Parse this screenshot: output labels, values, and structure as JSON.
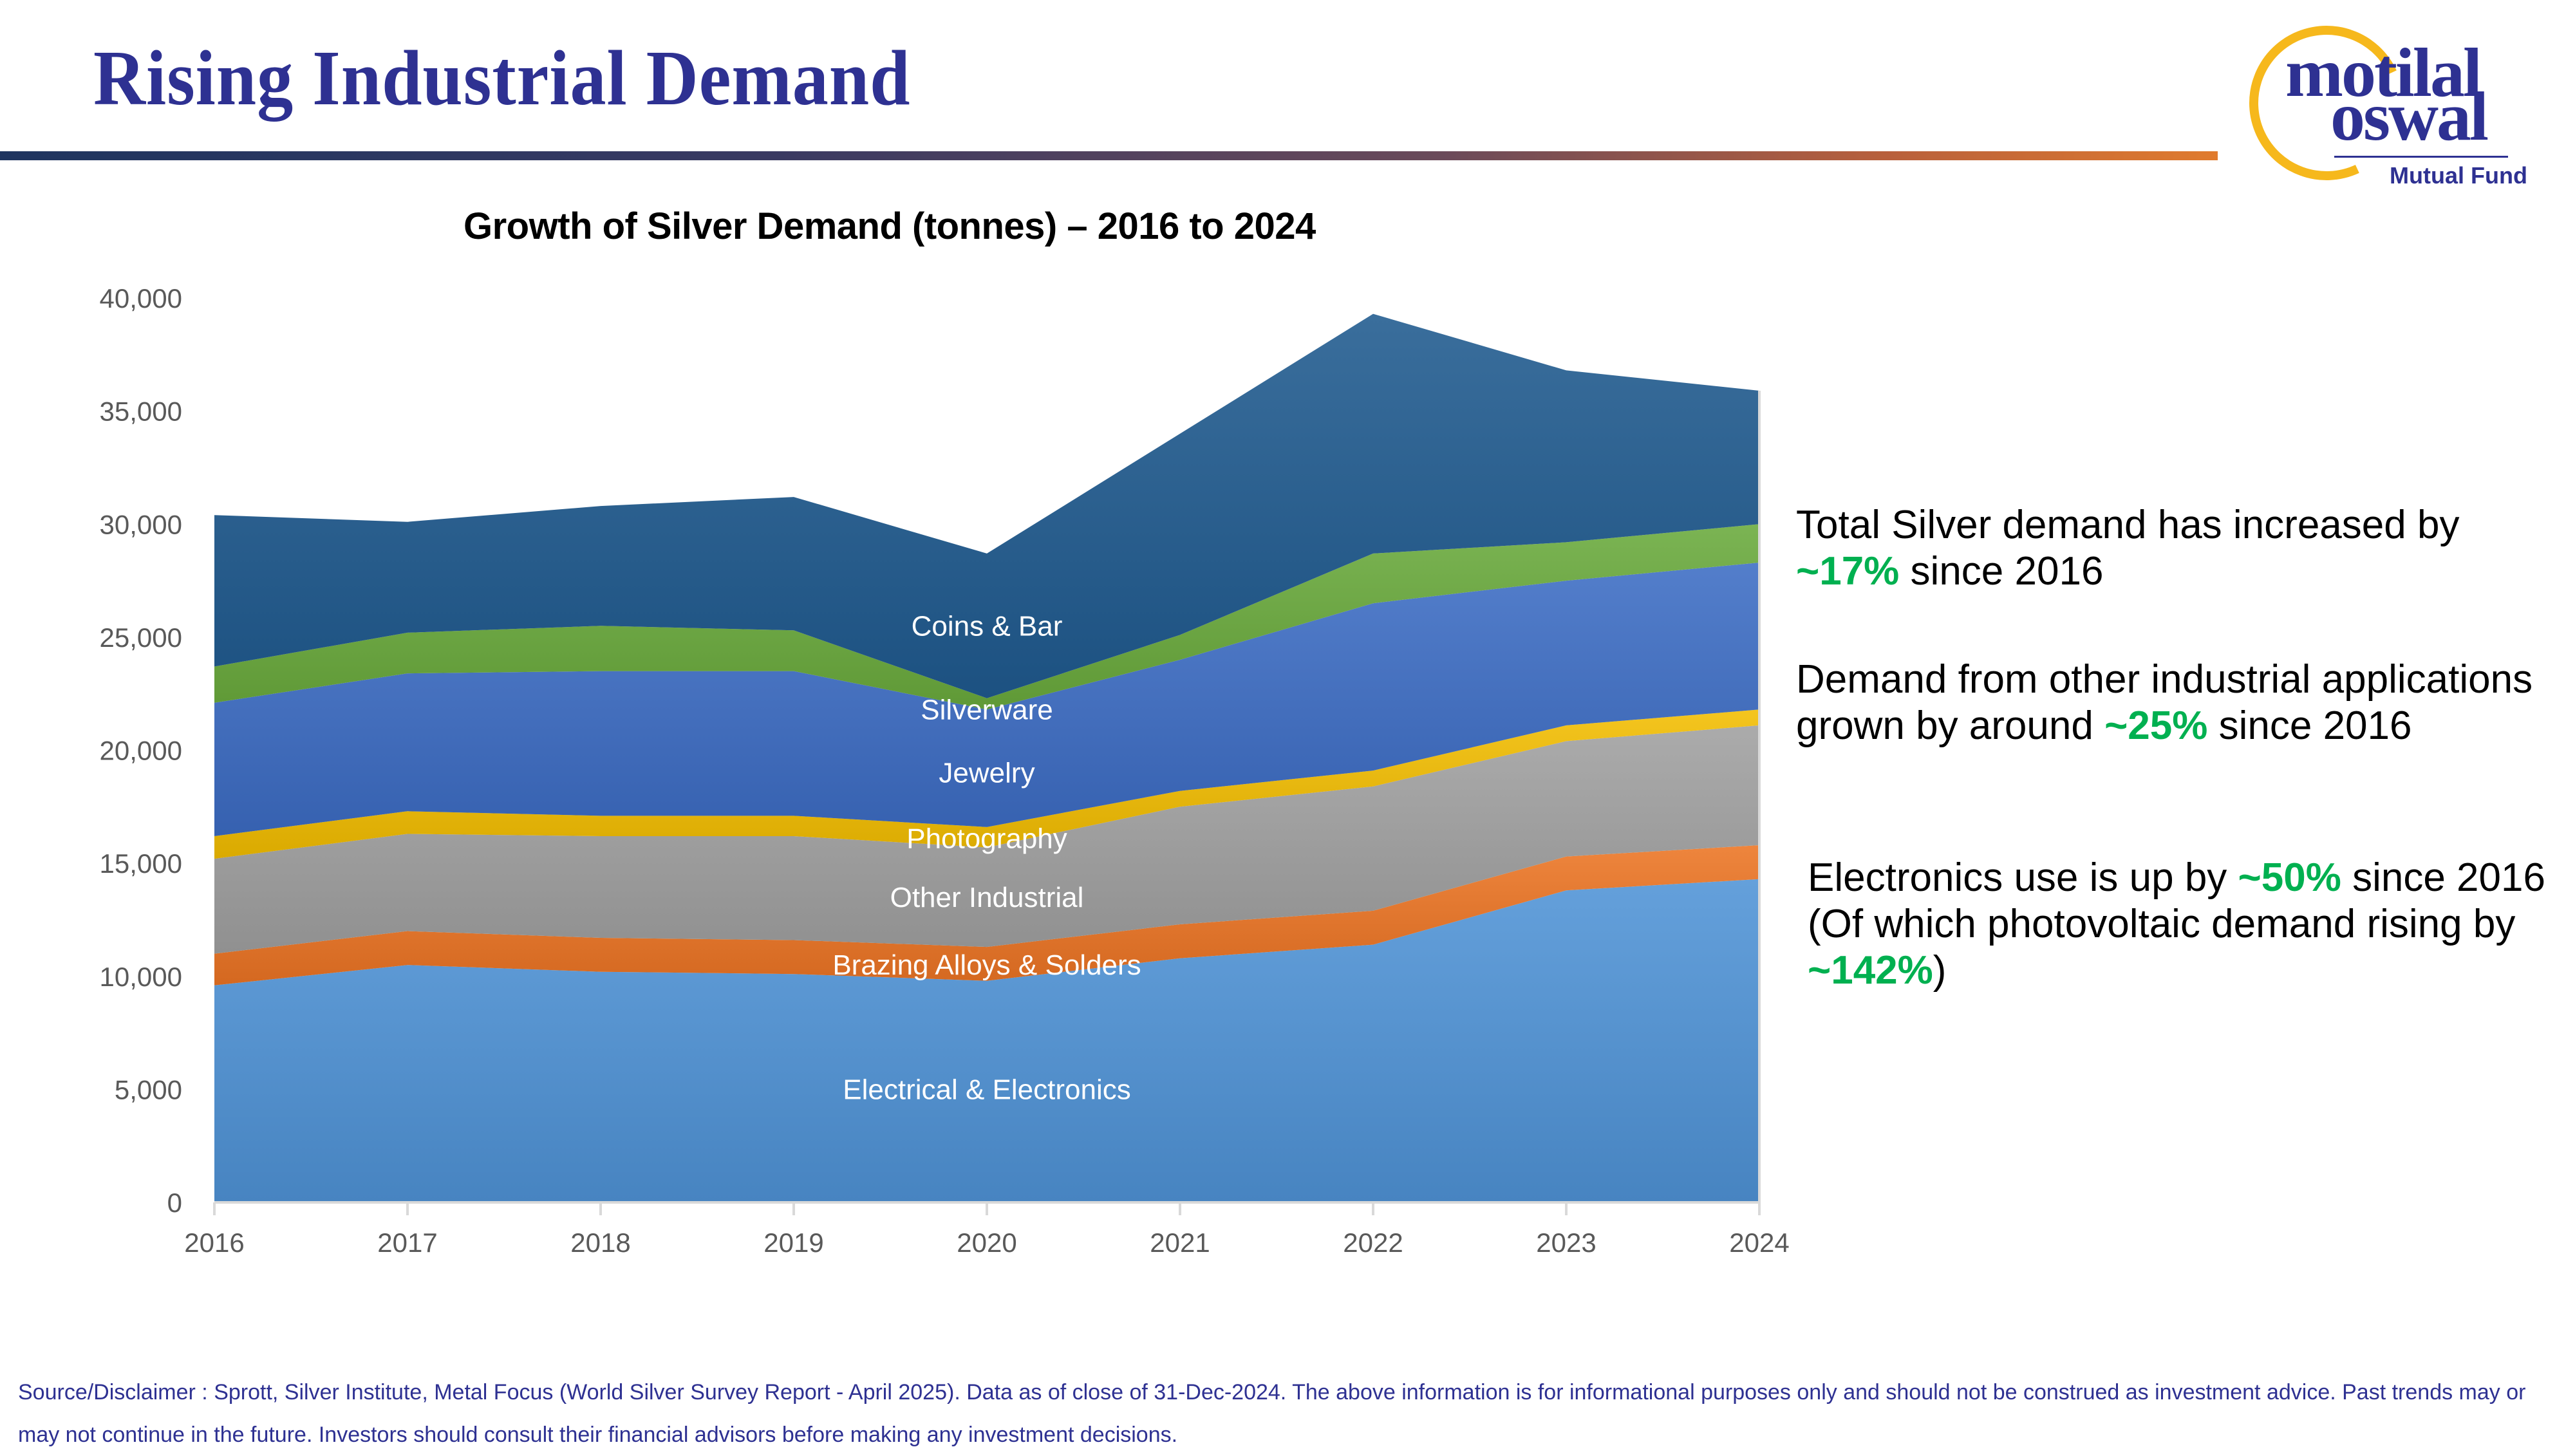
{
  "header": {
    "title": "Rising Industrial Demand",
    "logo": {
      "line1": "motilal",
      "line2": "oswal",
      "tagline": "Mutual Fund",
      "ring_color": "#f6b81c",
      "brand_color": "#2e3192"
    }
  },
  "chart_data": {
    "type": "area",
    "stacked": true,
    "title": "Growth of Silver Demand (tonnes) – 2016 to 2024",
    "xlabel": "",
    "ylabel": "",
    "x": [
      "2016",
      "2017",
      "2018",
      "2019",
      "2020",
      "2021",
      "2022",
      "2023",
      "2024"
    ],
    "ylim": [
      0,
      40000
    ],
    "yticks": [
      0,
      5000,
      10000,
      15000,
      20000,
      25000,
      30000,
      35000,
      40000
    ],
    "ytick_labels": [
      "0",
      "5,000",
      "10,000",
      "15,000",
      "20,000",
      "25,000",
      "30,000",
      "35,000",
      "40,000"
    ],
    "grid": false,
    "legend": "inline-labels",
    "series": [
      {
        "name": "Electrical & Electronics",
        "color": "#4f93d6",
        "values": [
          9600,
          10500,
          10200,
          10100,
          9800,
          10800,
          11400,
          13800,
          14300
        ]
      },
      {
        "name": "Brazing Alloys & Solders",
        "color": "#ec7423",
        "values": [
          1400,
          1500,
          1500,
          1500,
          1500,
          1500,
          1500,
          1500,
          1500
        ]
      },
      {
        "name": "Other Industrial",
        "color": "#a0a0a0",
        "values": [
          4200,
          4300,
          4500,
          4600,
          4400,
          5200,
          5500,
          5100,
          5300
        ]
      },
      {
        "name": "Photography",
        "color": "#f2bd00",
        "values": [
          1000,
          1000,
          900,
          900,
          900,
          700,
          700,
          700,
          700
        ]
      },
      {
        "name": "Jewelry",
        "color": "#3c6cc4",
        "values": [
          5900,
          6100,
          6400,
          6400,
          5200,
          5800,
          7400,
          6400,
          6500
        ]
      },
      {
        "name": "Silverware",
        "color": "#69aa3c",
        "values": [
          1600,
          1800,
          2000,
          1800,
          500,
          1100,
          2200,
          1700,
          1700
        ]
      },
      {
        "name": "Coins & Bar",
        "color": "#1f5a8f",
        "values": [
          6700,
          4900,
          5300,
          5900,
          6400,
          8900,
          10600,
          7600,
          5900
        ]
      }
    ],
    "label_positions_x": "2020"
  },
  "notes": [
    {
      "pre": "Total Silver demand has increased by ",
      "highlight": "~17%",
      "post": " since 2016"
    },
    {
      "pre": "Demand from other industrial applications grown by around ",
      "highlight": "~25%",
      "post": " since 2016"
    },
    {
      "pre": "Electronics use is up by ",
      "highlight": "~50%",
      "mid": " since 2016 (Of which photovoltaic demand rising by ",
      "highlight2": "~142%",
      "post": ")"
    }
  ],
  "highlight_color": "#00b050",
  "footer": {
    "disclaimer": "Source/Disclaimer : Sprott, Silver Institute, Metal Focus (World Silver Survey Report - April 2025). Data as of close of 31-Dec-2024. The above information is for informational purposes only and should not be construed as investment advice. Past trends may or may not continue in the future. Investors should consult their financial advisors before making any investment decisions."
  }
}
